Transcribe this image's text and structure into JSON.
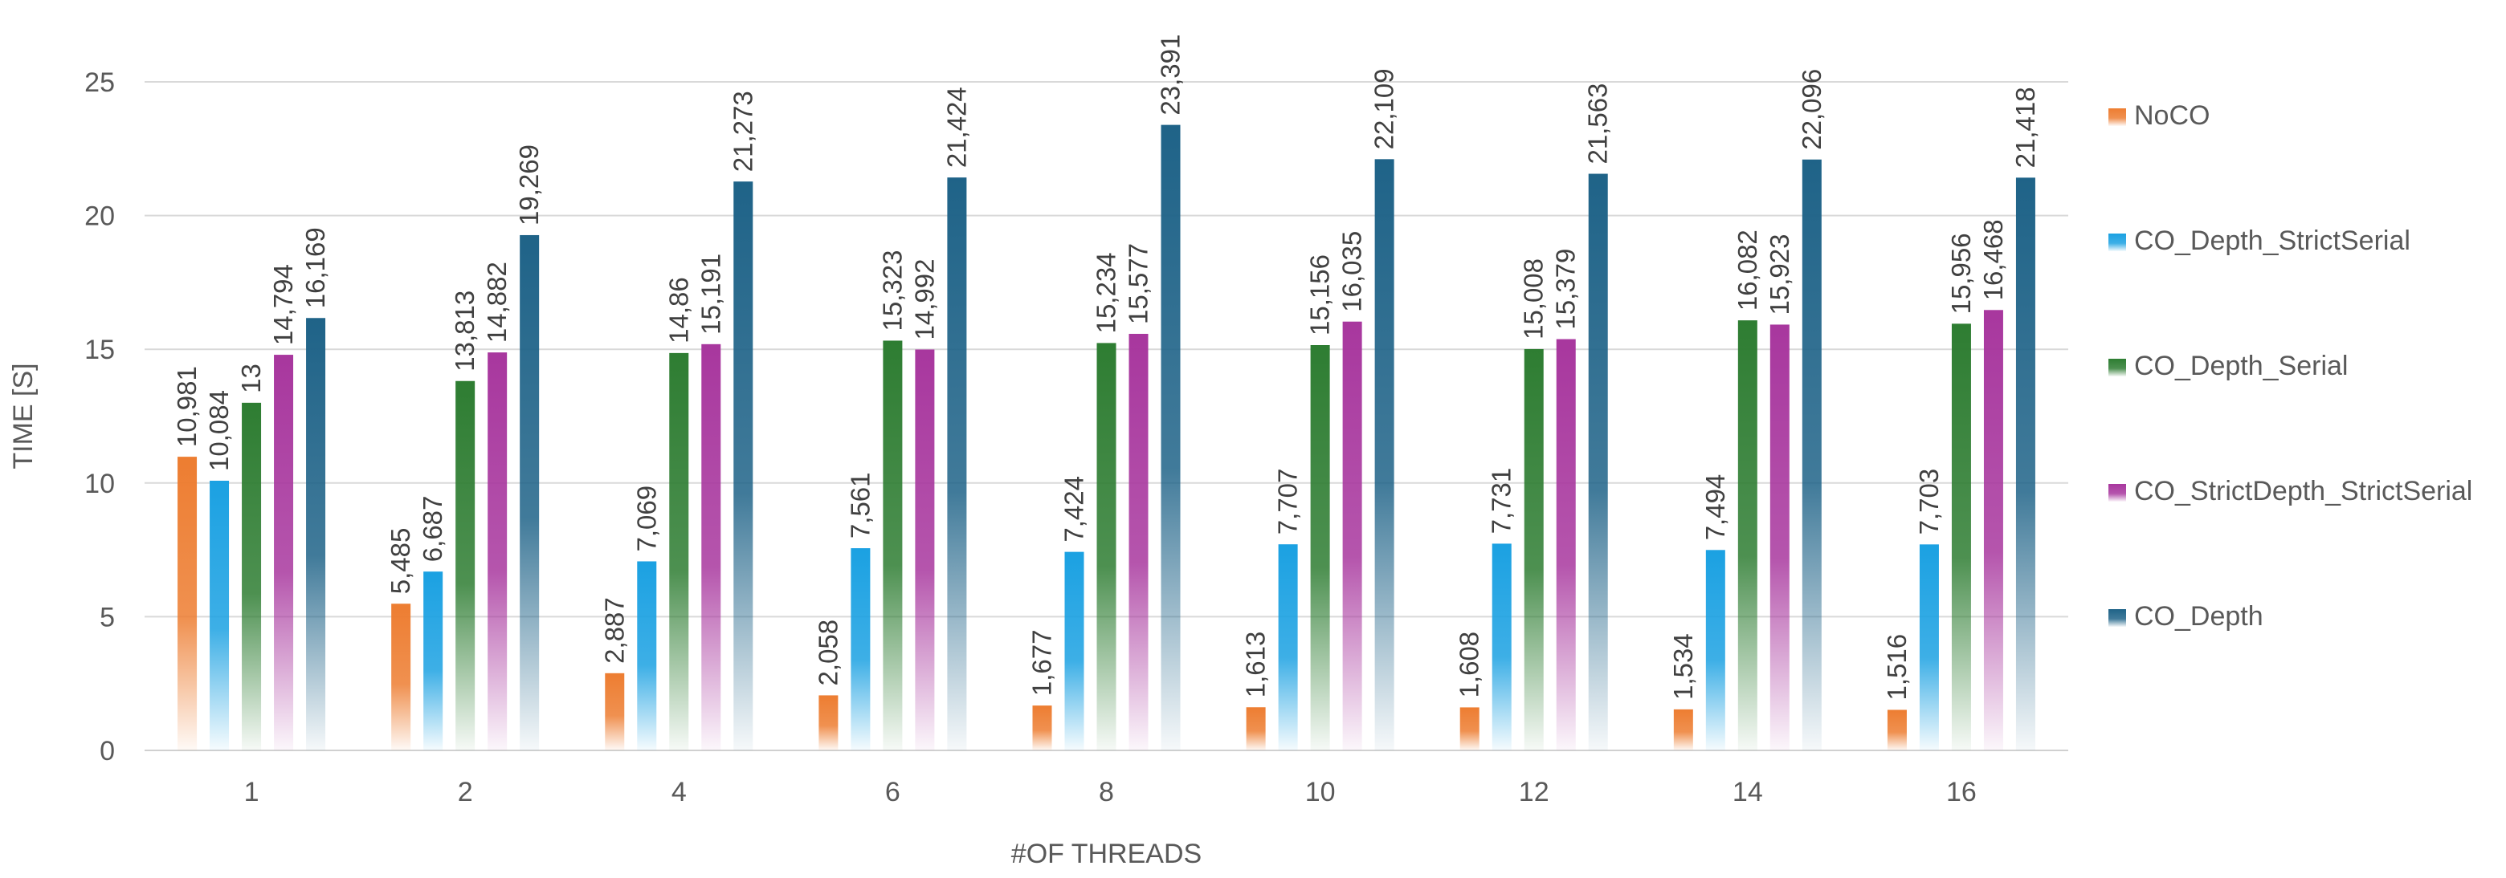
{
  "chart_data": {
    "type": "bar",
    "title": "",
    "xlabel": "#OF THREADS",
    "ylabel": "TIME [S]",
    "ylim": [
      0,
      25
    ],
    "yticks": [
      0,
      5,
      10,
      15,
      20,
      25
    ],
    "grid": true,
    "legend_position": "right",
    "categories": [
      "1",
      "2",
      "4",
      "6",
      "8",
      "10",
      "12",
      "14",
      "16"
    ],
    "series": [
      {
        "name": "NoCO",
        "color": "#ED7D31",
        "values": [
          10.981,
          5.485,
          2.887,
          2.058,
          1.677,
          1.613,
          1.608,
          1.534,
          1.516
        ],
        "labels": [
          "10,981",
          "5,485",
          "2,887",
          "2,058",
          "1,677",
          "1,613",
          "1,608",
          "1,534",
          "1,516"
        ]
      },
      {
        "name": "CO_Depth_StrictSerial",
        "color": "#1BA1E2",
        "values": [
          10.084,
          6.687,
          7.069,
          7.561,
          7.424,
          7.707,
          7.731,
          7.494,
          7.703
        ],
        "labels": [
          "10,084",
          "6,687",
          "7,069",
          "7,561",
          "7,424",
          "7,707",
          "7,731",
          "7,494",
          "7,703"
        ]
      },
      {
        "name": "CO_Depth_Serial",
        "color": "#2E7D32",
        "values": [
          13,
          13.813,
          14.86,
          15.323,
          15.234,
          15.156,
          15.008,
          16.082,
          15.956
        ],
        "labels": [
          "13",
          "13,813",
          "14,86",
          "15,323",
          "15,234",
          "15,156",
          "15,008",
          "16,082",
          "15,956"
        ]
      },
      {
        "name": "CO_StrictDepth_StrictSerial",
        "color": "#A8379E",
        "values": [
          14.794,
          14.882,
          15.191,
          14.992,
          15.577,
          16.035,
          15.379,
          15.923,
          16.468
        ],
        "labels": [
          "14,794",
          "14,882",
          "15,191",
          "14,992",
          "15,577",
          "16,035",
          "15,379",
          "15,923",
          "16,468"
        ]
      },
      {
        "name": "CO_Depth",
        "color": "#1F6388",
        "values": [
          16.169,
          19.269,
          21.273,
          21.424,
          23.391,
          22.109,
          21.563,
          22.096,
          21.418
        ],
        "labels": [
          "16,169",
          "19,269",
          "21,273",
          "21,424",
          "23,391",
          "22,109",
          "21,563",
          "22,096",
          "21,418"
        ]
      }
    ]
  }
}
